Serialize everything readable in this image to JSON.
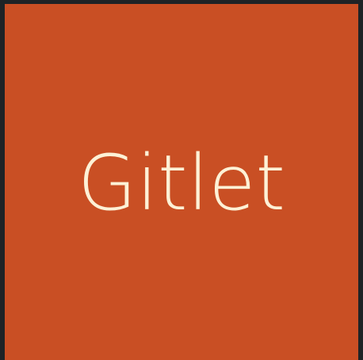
{
  "app": {
    "logo_text": "Gitlet",
    "colors": {
      "tile_background": "#c94f24",
      "text": "#fdf1d6",
      "frame_background": "#1e2326"
    }
  }
}
